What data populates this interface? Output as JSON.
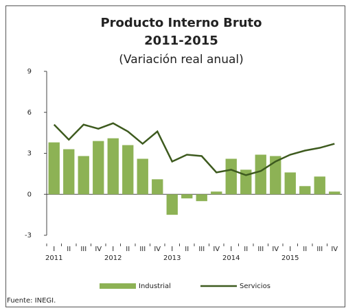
{
  "chart_data": {
    "type": "bar-line",
    "title": "Producto Interno Bruto",
    "subtitle": "2011-2015",
    "subtitle2": "(Variación real anual)",
    "categories": [
      "I",
      "II",
      "III",
      "IV",
      "I",
      "II",
      "III",
      "IV",
      "I",
      "II",
      "III",
      "IV",
      "I",
      "II",
      "III",
      "IV",
      "I",
      "II",
      "III",
      "IV"
    ],
    "x_groups": [
      "2011",
      "2012",
      "2013",
      "2014",
      "2015"
    ],
    "series": [
      {
        "name": "Industrial",
        "color": "#8db255",
        "kind": "bar",
        "values": [
          3.8,
          3.3,
          2.8,
          3.9,
          4.1,
          3.6,
          2.6,
          1.1,
          -1.5,
          -0.3,
          -0.5,
          0.2,
          2.6,
          1.8,
          2.9,
          2.8,
          1.6,
          0.6,
          1.3,
          0.2
        ]
      },
      {
        "name": "Servicios",
        "color": "#3d5a1e",
        "kind": "line",
        "values": [
          5.1,
          4.0,
          5.1,
          4.8,
          5.2,
          4.6,
          3.7,
          4.6,
          2.4,
          2.9,
          2.8,
          1.6,
          1.8,
          1.4,
          1.7,
          2.4,
          2.9,
          3.2,
          3.4,
          3.7
        ]
      }
    ],
    "ylim": [
      -3,
      9
    ],
    "yticks": [
      -3,
      0,
      3,
      6,
      9
    ],
    "source": "Fuente: INEGI."
  }
}
